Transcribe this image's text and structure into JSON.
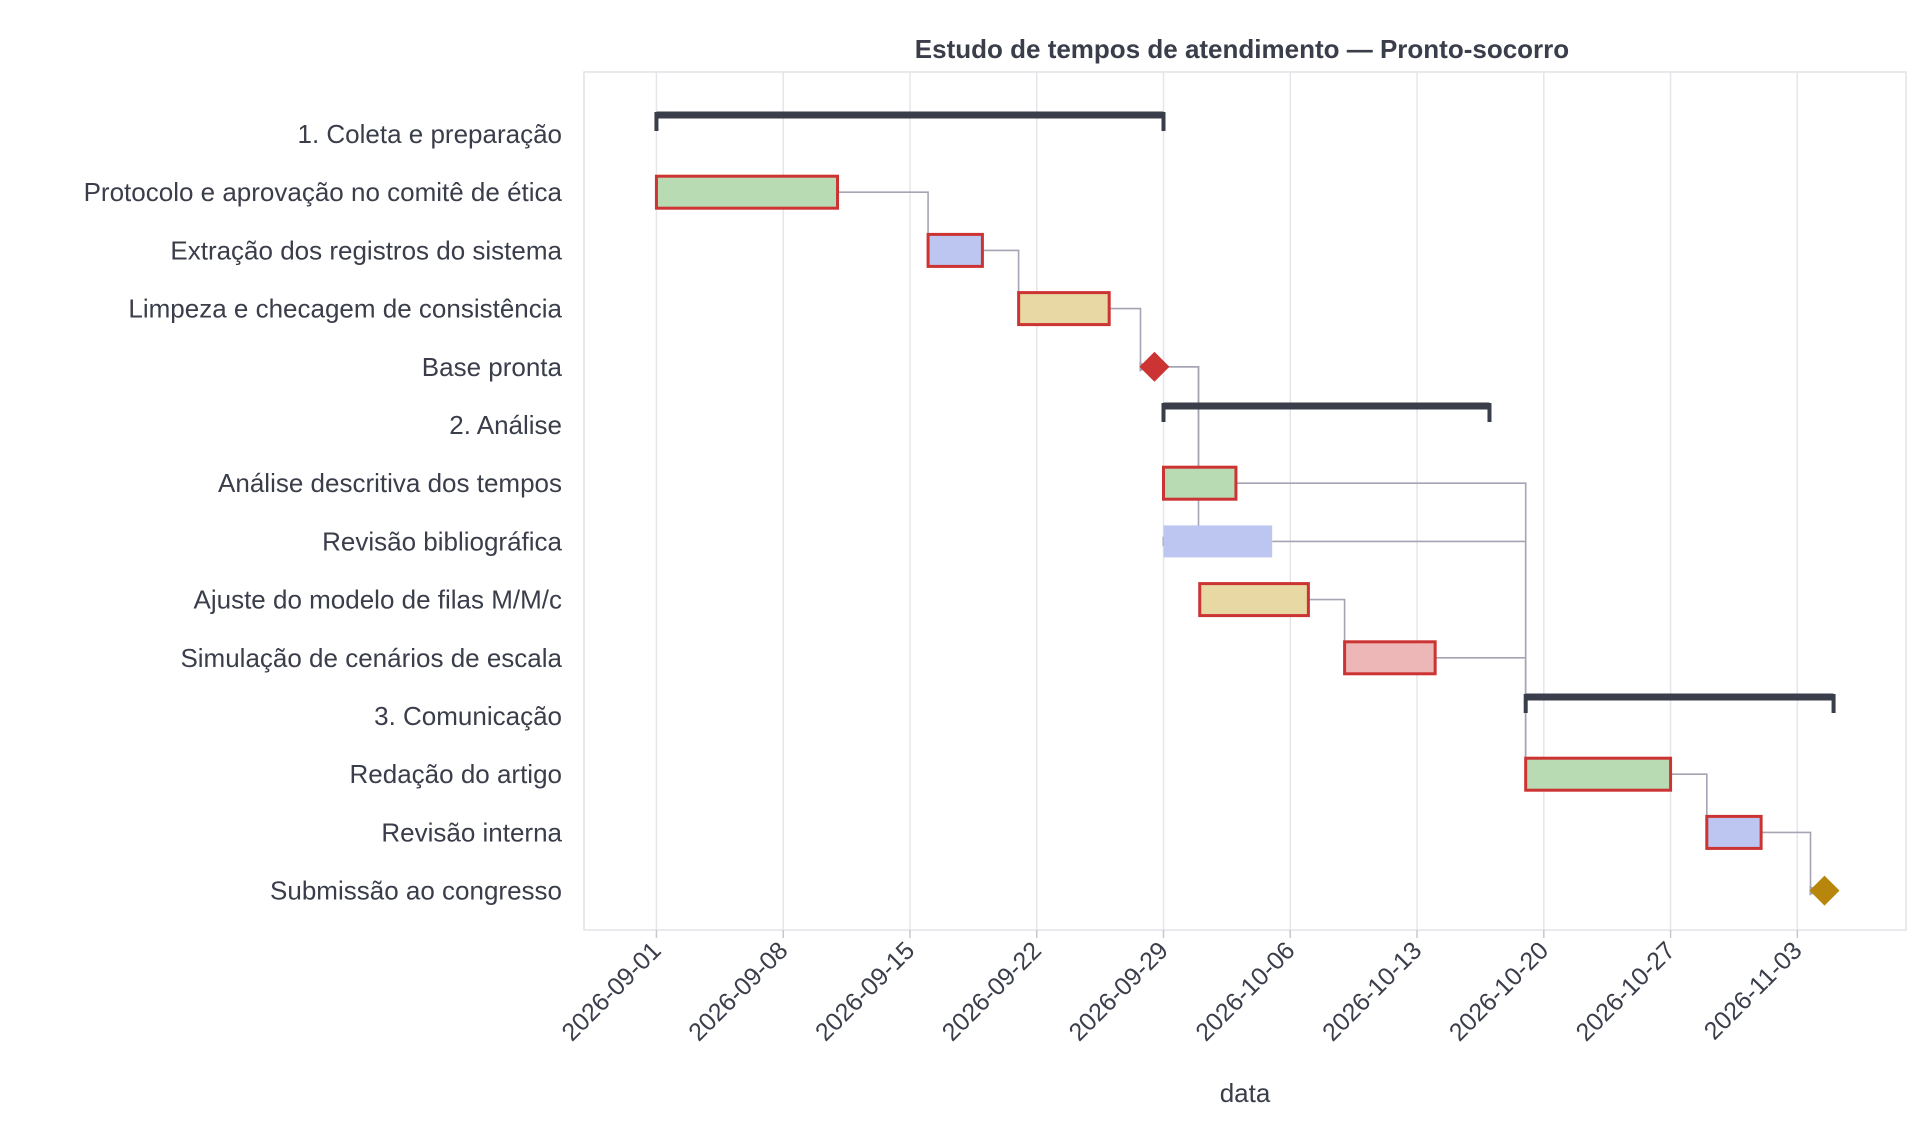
{
  "chart_data": {
    "type": "gantt",
    "title": "Estudo de tempos de atendimento — Pronto-socorro",
    "xlabel": "data",
    "xlim": [
      "2026-08-28",
      "2026-11-09"
    ],
    "x_ticks": [
      "2026-09-01",
      "2026-09-08",
      "2026-09-15",
      "2026-09-22",
      "2026-09-29",
      "2026-10-06",
      "2026-10-13",
      "2026-10-20",
      "2026-10-27",
      "2026-11-03"
    ],
    "grid": "vertical",
    "colors": {
      "summary": "#3a3d4a",
      "critical_border": "#cc3333",
      "green": "#b8dbb4",
      "blue": "#bcc6f0",
      "yellow": "#e7d8a4",
      "red": "#edb7b7",
      "milestone_red": "#cc3333",
      "milestone_gold": "#b8860b",
      "dependency": "#a4a4b4"
    },
    "rows": [
      {
        "label": "1. Coleta e preparação",
        "kind": "summary",
        "start": "2026-09-01",
        "end": "2026-09-29"
      },
      {
        "label": "Protocolo e aprovação no comitê de ética",
        "kind": "task",
        "start": "2026-09-01",
        "end": "2026-09-11",
        "color": "green",
        "critical": true
      },
      {
        "label": "Extração dos registros do sistema",
        "kind": "task",
        "start": "2026-09-16",
        "end": "2026-09-19",
        "color": "blue",
        "critical": true
      },
      {
        "label": "Limpeza e checagem de consistência",
        "kind": "task",
        "start": "2026-09-21",
        "end": "2026-09-26",
        "color": "yellow",
        "critical": true
      },
      {
        "label": "Base pronta",
        "kind": "milestone",
        "date": "2026-09-28.5",
        "color": "milestone_red"
      },
      {
        "label": "2. Análise",
        "kind": "summary",
        "start": "2026-09-29",
        "end": "2026-10-17"
      },
      {
        "label": "Análise descritiva dos tempos",
        "kind": "task",
        "start": "2026-09-29",
        "end": "2026-10-03",
        "color": "green",
        "critical": true
      },
      {
        "label": "Revisão bibliográfica",
        "kind": "task",
        "start": "2026-09-29",
        "end": "2026-10-05",
        "color": "blue",
        "critical": false
      },
      {
        "label": "Ajuste do modelo de filas M/M/c",
        "kind": "task",
        "start": "2026-10-01",
        "end": "2026-10-07",
        "color": "yellow",
        "critical": true
      },
      {
        "label": "Simulação de cenários de escala",
        "kind": "task",
        "start": "2026-10-09",
        "end": "2026-10-14",
        "color": "red",
        "critical": true
      },
      {
        "label": "3. Comunicação",
        "kind": "summary",
        "start": "2026-10-19",
        "end": "2026-11-05"
      },
      {
        "label": "Redação do artigo",
        "kind": "task",
        "start": "2026-10-19",
        "end": "2026-10-27",
        "color": "green",
        "critical": true
      },
      {
        "label": "Revisão interna",
        "kind": "task",
        "start": "2026-10-29",
        "end": "2026-11-01",
        "color": "blue",
        "critical": true
      },
      {
        "label": "Submissão ao congresso",
        "kind": "milestone",
        "date": "2026-11-04.5",
        "color": "milestone_gold"
      }
    ],
    "dependencies": [
      {
        "from": 1,
        "to": 2
      },
      {
        "from": 2,
        "to": 3
      },
      {
        "from": 3,
        "to": 4
      },
      {
        "from": 4,
        "to": 6
      },
      {
        "from": 4,
        "to": 7
      },
      {
        "from": 6,
        "to": 11
      },
      {
        "from": 7,
        "to": 11
      },
      {
        "from": 8,
        "to": 9
      },
      {
        "from": 9,
        "to": 11
      },
      {
        "from": 11,
        "to": 12
      },
      {
        "from": 12,
        "to": 13
      }
    ]
  }
}
